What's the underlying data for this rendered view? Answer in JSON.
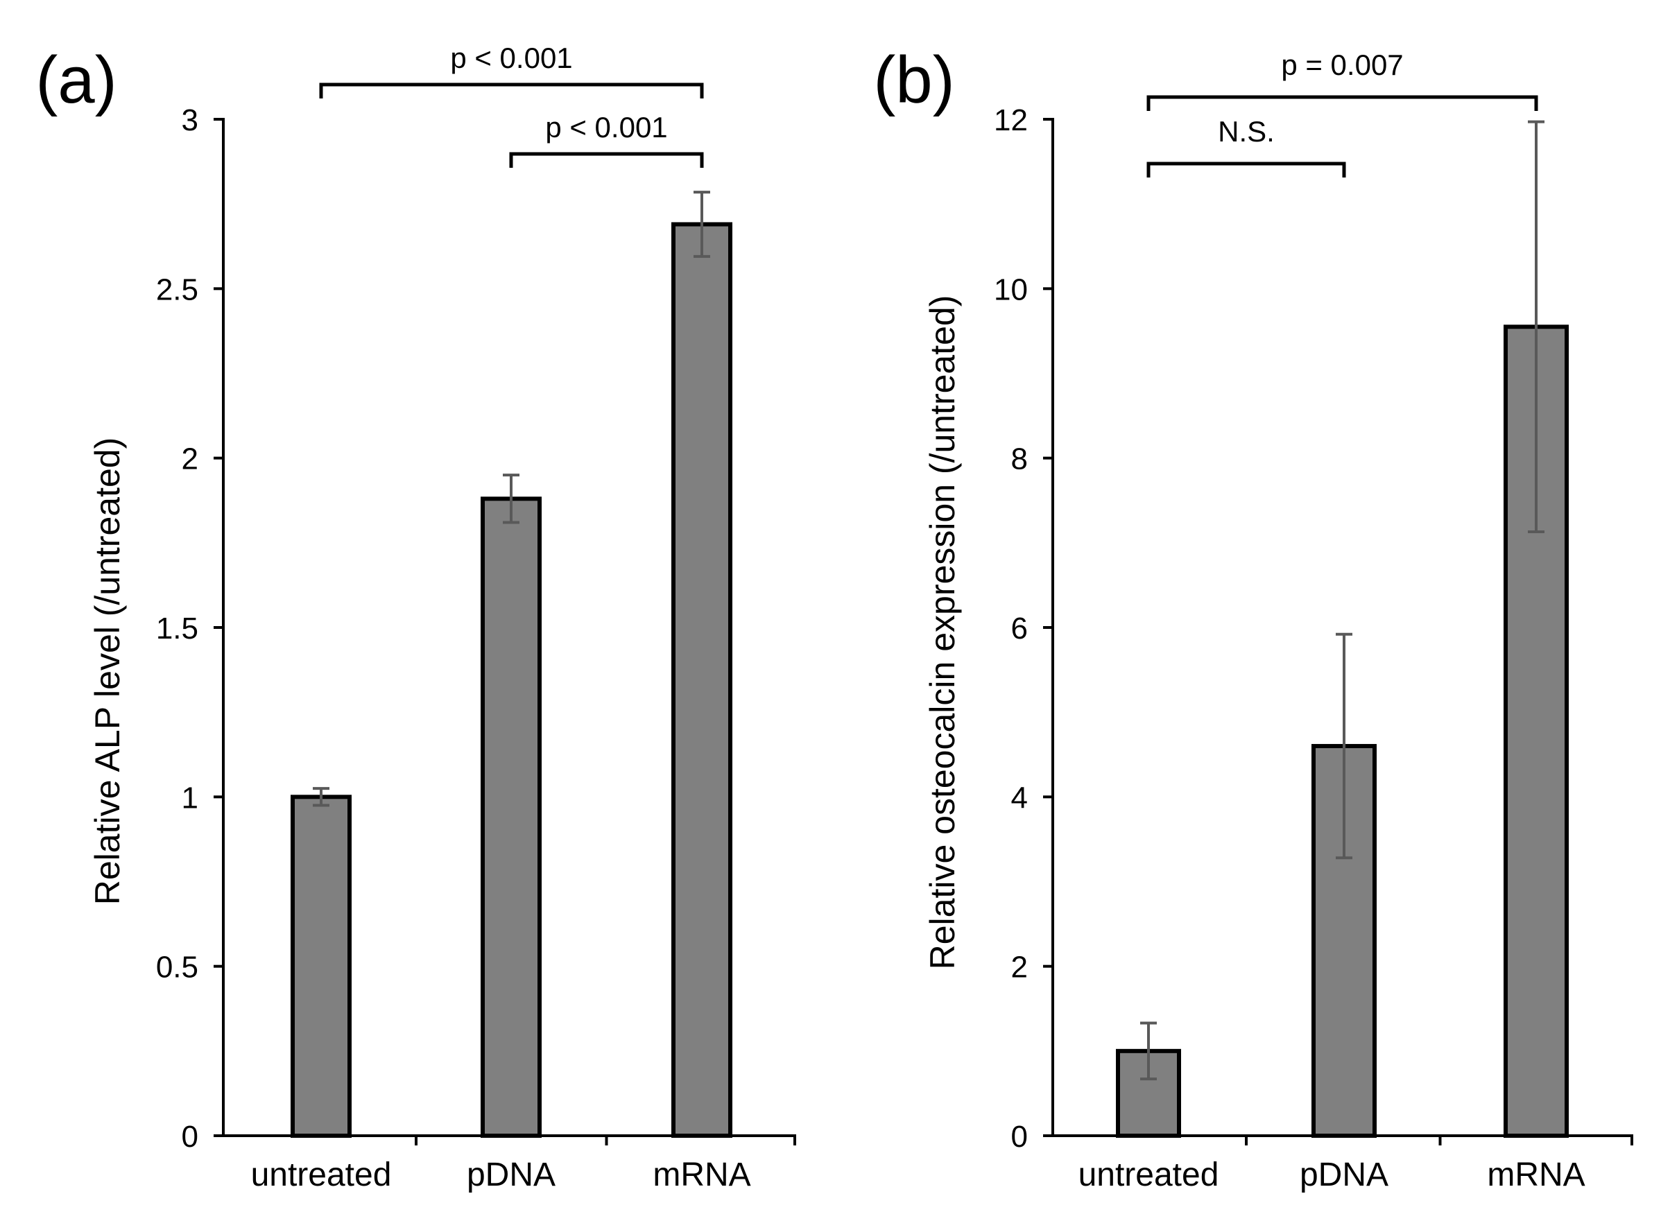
{
  "colors": {
    "bar_fill": "#808080",
    "bar_stroke": "#000000",
    "error_bar": "#595959",
    "axis": "#000000",
    "background": "#ffffff"
  },
  "chart_data": [
    {
      "panel_label": "(a)",
      "type": "bar",
      "categories": [
        "untreated",
        "pDNA",
        "mRNA"
      ],
      "values": [
        1.0,
        1.88,
        2.69
      ],
      "error": [
        0.025,
        0.07,
        0.095
      ],
      "ylabel": "Relative ALP level (/untreated)",
      "xlabel": "",
      "ylim": [
        0,
        3
      ],
      "yticks": [
        0,
        0.5,
        1,
        1.5,
        2,
        2.5,
        3
      ],
      "ytick_labels": [
        "0",
        "0.5",
        "1",
        "1.5",
        "2",
        "2.5",
        "3"
      ],
      "annotations": [
        {
          "text": "p < 0.001",
          "from": "untreated",
          "to": "mRNA",
          "level": 2
        },
        {
          "text": "p < 0.001",
          "from": "pDNA",
          "to": "mRNA",
          "level": 1
        }
      ]
    },
    {
      "panel_label": "(b)",
      "type": "bar",
      "categories": [
        "untreated",
        "pDNA",
        "mRNA"
      ],
      "values": [
        1.0,
        4.6,
        9.55
      ],
      "error": [
        0.33,
        1.32,
        2.42
      ],
      "ylabel": "Relative osteocalcin expression (/untreated)",
      "xlabel": "",
      "ylim": [
        0,
        12
      ],
      "yticks": [
        0,
        2,
        4,
        6,
        8,
        10,
        12
      ],
      "ytick_labels": [
        "0",
        "2",
        "4",
        "6",
        "8",
        "10",
        "12"
      ],
      "annotations": [
        {
          "text": "p = 0.007",
          "from": "untreated",
          "to": "mRNA",
          "level": 2
        },
        {
          "text": "N.S.",
          "from": "untreated",
          "to": "pDNA",
          "level": 1
        }
      ]
    }
  ]
}
